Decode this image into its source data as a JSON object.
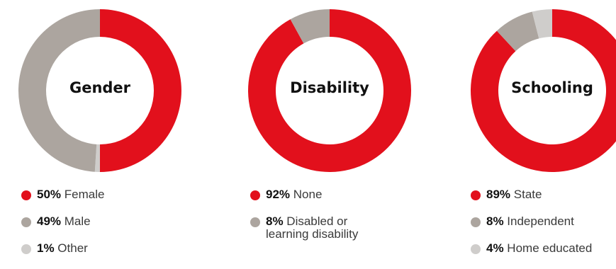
{
  "chart_data": [
    {
      "type": "pie",
      "title": "Gender",
      "slices": [
        {
          "label": "Female",
          "value": 50,
          "display": "50%",
          "color": "#e2101c"
        },
        {
          "label": "Male",
          "value": 49,
          "display": "49%",
          "color": "#aca59f"
        },
        {
          "label": "Other",
          "value": 1,
          "display": "1%",
          "color": "#cfcdcb"
        }
      ],
      "draw_order": [
        0,
        2,
        1
      ],
      "draw_direction": "clockwise"
    },
    {
      "type": "pie",
      "title": "Disability",
      "slices": [
        {
          "label": "None",
          "value": 92,
          "display": "92%",
          "color": "#e2101c"
        },
        {
          "label": "Disabled or\nlearning disability",
          "value": 8,
          "display": "8%",
          "color": "#aca59f"
        }
      ],
      "draw_order": [
        0,
        1
      ],
      "draw_direction": "clockwise"
    },
    {
      "type": "pie",
      "title": "Schooling",
      "slices": [
        {
          "label": "State",
          "value": 89,
          "display": "89%",
          "color": "#e2101c"
        },
        {
          "label": "Independent",
          "value": 8,
          "display": "8%",
          "color": "#aca59f"
        },
        {
          "label": "Home educated",
          "value": 4,
          "display": "4%",
          "color": "#cfcdcb"
        }
      ],
      "draw_order": [
        0,
        1,
        2
      ],
      "draw_direction": "clockwise"
    }
  ]
}
